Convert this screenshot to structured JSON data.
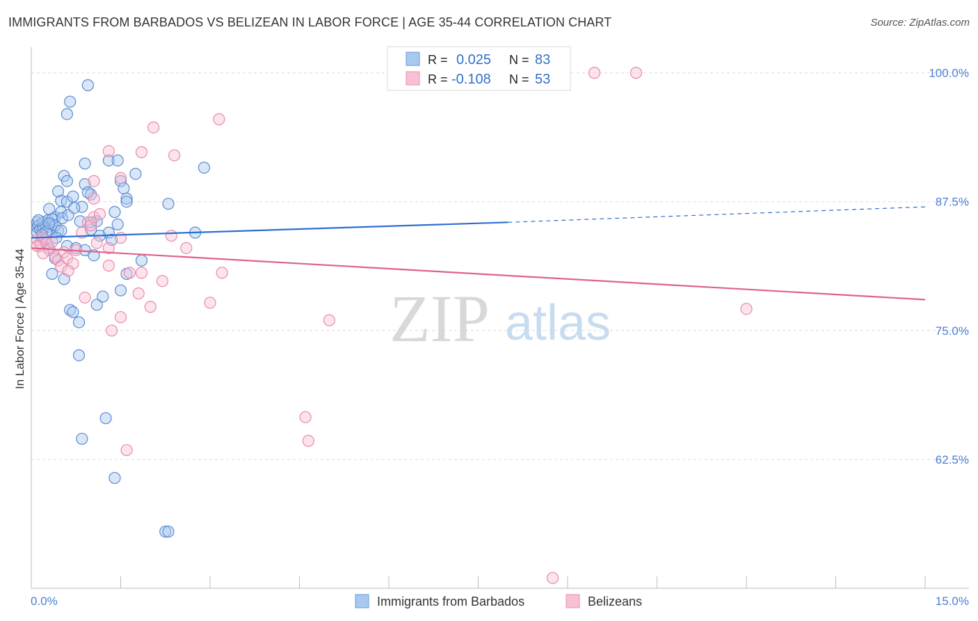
{
  "header": {
    "title": "IMMIGRANTS FROM BARBADOS VS BELIZEAN IN LABOR FORCE | AGE 35-44 CORRELATION CHART",
    "source": "Source: ZipAtlas.com"
  },
  "watermark": {
    "zip": "ZIP",
    "atlas": "atlas"
  },
  "legend_box": {
    "rows": [
      {
        "r_label": "R =",
        "r_value": "0.025",
        "n_label": "N =",
        "n_value": "83",
        "color": "#a8c8f0",
        "stroke": "#6a9ad8"
      },
      {
        "r_label": "R =",
        "r_value": "-0.108",
        "n_label": "N =",
        "n_value": "53",
        "color": "#f8c0d4",
        "stroke": "#e890b0"
      }
    ]
  },
  "chart_data": {
    "type": "scatter",
    "title": "IMMIGRANTS FROM BARBADOS VS BELIZEAN IN LABOR FORCE | AGE 35-44 CORRELATION CHART",
    "xlabel": "",
    "ylabel": "In Labor Force | Age 35-44",
    "xlim": [
      0,
      15
    ],
    "ylim": [
      50,
      102
    ],
    "x_tick_labels": [
      "0.0%",
      "15.0%"
    ],
    "y_ticks": [
      62.5,
      75.0,
      87.5,
      100.0
    ],
    "y_tick_labels": [
      "62.5%",
      "75.0%",
      "87.5%",
      "100.0%"
    ],
    "grid": true,
    "series": [
      {
        "name": "Immigrants from Barbados",
        "color": "#a8c8f0",
        "stroke": "#5a8ad0",
        "line_color": "#2b6fcf",
        "trend": {
          "x0": 0.0,
          "y0": 84.0,
          "x1": 8.0,
          "y1": 85.5,
          "dash_to_x": 15.0,
          "dash_to_y": 87.0
        },
        "points": [
          [
            0.1,
            85.5
          ],
          [
            0.1,
            85.0
          ],
          [
            0.1,
            84.5
          ],
          [
            0.12,
            85.2
          ],
          [
            0.15,
            84.8
          ],
          [
            0.2,
            85.5
          ],
          [
            0.25,
            85.0
          ],
          [
            0.28,
            85.7
          ],
          [
            0.3,
            84.6
          ],
          [
            0.35,
            85.3
          ],
          [
            0.4,
            86.0
          ],
          [
            0.45,
            84.7
          ],
          [
            0.15,
            83.5
          ],
          [
            0.3,
            83.0
          ],
          [
            0.5,
            86.5
          ],
          [
            0.3,
            86.8
          ],
          [
            0.35,
            85.8
          ],
          [
            0.4,
            85.2
          ],
          [
            0.5,
            87.6
          ],
          [
            0.45,
            88.5
          ],
          [
            0.6,
            87.5
          ],
          [
            0.7,
            88.0
          ],
          [
            0.55,
            90.0
          ],
          [
            0.6,
            89.5
          ],
          [
            0.9,
            89.2
          ],
          [
            1.0,
            88.2
          ],
          [
            0.85,
            87.0
          ],
          [
            1.1,
            85.6
          ],
          [
            1.0,
            85.5
          ],
          [
            1.0,
            84.8
          ],
          [
            0.5,
            84.7
          ],
          [
            0.6,
            83.2
          ],
          [
            0.75,
            83.0
          ],
          [
            0.9,
            82.8
          ],
          [
            1.05,
            82.3
          ],
          [
            0.4,
            82.0
          ],
          [
            0.35,
            80.5
          ],
          [
            0.55,
            80.0
          ],
          [
            0.65,
            77.0
          ],
          [
            0.7,
            76.8
          ],
          [
            0.8,
            75.8
          ],
          [
            1.1,
            77.5
          ],
          [
            1.2,
            78.3
          ],
          [
            0.8,
            72.6
          ],
          [
            0.6,
            96.0
          ],
          [
            0.65,
            97.2
          ],
          [
            0.95,
            98.8
          ],
          [
            0.9,
            91.2
          ],
          [
            1.3,
            91.5
          ],
          [
            1.45,
            91.5
          ],
          [
            1.5,
            89.5
          ],
          [
            1.75,
            90.2
          ],
          [
            1.6,
            87.8
          ],
          [
            1.55,
            88.8
          ],
          [
            1.6,
            87.5
          ],
          [
            1.4,
            86.5
          ],
          [
            1.45,
            85.3
          ],
          [
            1.3,
            84.5
          ],
          [
            1.85,
            81.8
          ],
          [
            1.6,
            80.5
          ],
          [
            1.5,
            78.9
          ],
          [
            2.3,
            87.3
          ],
          [
            2.9,
            90.8
          ],
          [
            2.75,
            84.5
          ],
          [
            1.25,
            66.5
          ],
          [
            0.85,
            64.5
          ],
          [
            1.4,
            60.7
          ],
          [
            2.25,
            55.5
          ],
          [
            2.3,
            55.5
          ],
          [
            0.2,
            85.0
          ],
          [
            0.25,
            84.6
          ],
          [
            0.3,
            85.4
          ],
          [
            0.18,
            84.3
          ],
          [
            0.12,
            85.7
          ],
          [
            0.22,
            83.8
          ],
          [
            0.42,
            84.0
          ],
          [
            0.52,
            85.9
          ],
          [
            0.62,
            86.2
          ],
          [
            0.82,
            85.6
          ],
          [
            1.15,
            84.2
          ],
          [
            1.35,
            83.8
          ],
          [
            0.72,
            86.9
          ],
          [
            0.95,
            88.4
          ]
        ]
      },
      {
        "name": "Belizeans",
        "color": "#f8c0d4",
        "stroke": "#e88aaa",
        "line_color": "#e0608e",
        "trend": {
          "x0": 0.0,
          "y0": 83.0,
          "x1": 15.0,
          "y1": 78.0
        },
        "points": [
          [
            0.1,
            83.8
          ],
          [
            0.15,
            83.2
          ],
          [
            0.2,
            84.0
          ],
          [
            0.25,
            83.5
          ],
          [
            0.1,
            83.2
          ],
          [
            0.3,
            82.8
          ],
          [
            0.35,
            83.6
          ],
          [
            0.2,
            82.5
          ],
          [
            0.4,
            82.2
          ],
          [
            0.45,
            81.8
          ],
          [
            0.55,
            82.6
          ],
          [
            0.6,
            82.0
          ],
          [
            0.7,
            81.5
          ],
          [
            0.75,
            82.8
          ],
          [
            0.5,
            81.2
          ],
          [
            0.85,
            84.5
          ],
          [
            0.95,
            85.5
          ],
          [
            1.0,
            85.2
          ],
          [
            1.05,
            86.0
          ],
          [
            1.15,
            86.3
          ],
          [
            1.1,
            83.5
          ],
          [
            1.3,
            83.0
          ],
          [
            1.5,
            84.0
          ],
          [
            1.3,
            81.3
          ],
          [
            1.65,
            80.6
          ],
          [
            1.85,
            80.6
          ],
          [
            1.8,
            78.6
          ],
          [
            1.5,
            76.3
          ],
          [
            1.35,
            75.0
          ],
          [
            2.0,
            77.3
          ],
          [
            2.2,
            79.8
          ],
          [
            2.35,
            84.2
          ],
          [
            2.6,
            83.0
          ],
          [
            3.2,
            80.6
          ],
          [
            3.0,
            77.7
          ],
          [
            5.0,
            76.0
          ],
          [
            1.3,
            92.4
          ],
          [
            1.85,
            92.3
          ],
          [
            2.05,
            94.7
          ],
          [
            2.4,
            92.0
          ],
          [
            3.15,
            95.5
          ],
          [
            1.5,
            89.8
          ],
          [
            1.05,
            89.5
          ],
          [
            1.05,
            87.8
          ],
          [
            9.45,
            100.0
          ],
          [
            10.15,
            100.0
          ],
          [
            12.0,
            77.1
          ],
          [
            4.6,
            66.6
          ],
          [
            4.65,
            64.3
          ],
          [
            1.6,
            63.4
          ],
          [
            8.75,
            51.0
          ],
          [
            0.9,
            78.2
          ],
          [
            0.62,
            80.8
          ]
        ]
      }
    ],
    "legend": [
      "Immigrants from Barbados",
      "Belizeans"
    ],
    "legend_position": "bottom-center"
  }
}
